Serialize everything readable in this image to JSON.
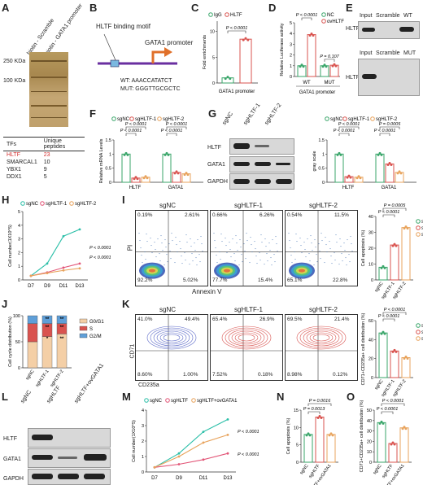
{
  "panel_letters": [
    "A",
    "B",
    "C",
    "D",
    "E",
    "F",
    "G",
    "H",
    "I",
    "J",
    "K",
    "L",
    "M",
    "N",
    "O"
  ],
  "A": {
    "lanes": [
      "biotin - Scramble",
      "biotin - GATA1 promoter"
    ],
    "markers": [
      "250 KDa",
      "100 KDa"
    ],
    "table_headers": [
      "TFs",
      "Unique peptides"
    ],
    "table_rows": [
      [
        "HLTF",
        "23"
      ],
      [
        "SMARCAL1",
        "10"
      ],
      [
        "YBX1",
        "9"
      ],
      [
        "DDX1",
        "5"
      ]
    ],
    "highlight_color": "#d32f2f"
  },
  "B": {
    "title": "HLTF binding motif",
    "promoter": "GATA1 promoter",
    "wt": "WT: AAACCATATCT",
    "mut": "MUT: GGGTTGCGCTC"
  },
  "C": {
    "legend": [
      "IgG",
      "HLTF"
    ],
    "ylabel": "Fold enrichments",
    "xlabel": "GATA1 promoter",
    "p": "P < 0.0001"
  },
  "D": {
    "legend": [
      "NC",
      "ovHLTF"
    ],
    "ylabel": "Relative Luciferase activity",
    "xlabel": "GATA1 promoter",
    "groups": [
      "WT",
      "MUT"
    ],
    "p1": "P < 0.0001",
    "p2": "P = 0.107"
  },
  "E": {
    "top_lanes": [
      "Input",
      "Scramble",
      "WT"
    ],
    "bottom_lanes": [
      "Input",
      "Scramble",
      "MUT"
    ],
    "row_label": "HLTF"
  },
  "F": {
    "legend": [
      "sgNC",
      "sgHLTF-1",
      "sgHLTF-2"
    ],
    "ylabel": "Relative mRNA Levels",
    "groups": [
      "HLTF",
      "GATA1"
    ],
    "p": [
      "P < 0.0001",
      "P < 0.0001",
      "P < 0.0001",
      "P < 0.0001"
    ]
  },
  "G": {
    "lanes": [
      "sgNC",
      "sgHLTF-1",
      "sgHLTF-2"
    ],
    "rows": [
      "HLTF",
      "GATA1",
      "GAPDH"
    ],
    "legend": [
      "sgNC",
      "sgHLTF-1",
      "sgHLTF-2"
    ],
    "ylabel": "gray scale",
    "groups": [
      "HLTF",
      "GATA1"
    ],
    "p": [
      "P < 0.0001",
      "P < 0.0001",
      "P = 0.0005",
      "P < 0.0001"
    ]
  },
  "H": {
    "legend": [
      "sgNC",
      "sgHLTF-1",
      "sgHLTF-2"
    ],
    "ylabel": "Cell number(1X10^5)",
    "p": [
      "P < 0.0001",
      "P < 0.0001"
    ]
  },
  "I": {
    "titles": [
      "sgNC",
      "sgHLTF-1",
      "sgHLTF-2"
    ],
    "quads": [
      [
        "0.19%",
        "2.61%",
        "92.2%",
        "5.02%"
      ],
      [
        "0.66%",
        "6.26%",
        "77.7%",
        "15.4%"
      ],
      [
        "0.54%",
        "11.5%",
        "65.1%",
        "22.8%"
      ]
    ],
    "xlabel": "Annexin V",
    "ylabel": "PI",
    "bar_ylabel": "Cell apoptosis (%)",
    "legend": [
      "sgNC",
      "sgHLTF-1",
      "sgHLTF-2"
    ],
    "p": [
      "P = 0.0005",
      "P < 0.0001"
    ]
  },
  "J": {
    "ylabel": "Cell cycle distribution (%)",
    "legend": [
      "G0/G1",
      "S",
      "G2/M"
    ],
    "stars": [
      "**",
      "*",
      "**",
      "**",
      "**",
      "**"
    ]
  },
  "K": {
    "titles": [
      "sgNC",
      "sgHLTF-1",
      "sgHLTF-2"
    ],
    "quads": [
      [
        "41.0%",
        "49.4%",
        "8.60%",
        "1.00%"
      ],
      [
        "65.4%",
        "26.9%",
        "7.52%",
        "0.18%"
      ],
      [
        "69.5%",
        "21.4%",
        "8.98%",
        "0.12%"
      ]
    ],
    "xlabel": "CD235a",
    "ylabel": "CD71",
    "bar_ylabel": "CD71+CD235a+ cell distribution (%)",
    "legend": [
      "sgNC",
      "sgHLTF-1",
      "sgHLTF-2"
    ],
    "p": [
      "P < 0.0001",
      "P < 0.0001"
    ]
  },
  "L": {
    "lanes": [
      "sgNC",
      "sgHLTF",
      "sgHLTF+ovGATA1"
    ],
    "rows": [
      "HLTF",
      "GATA1",
      "GAPDH"
    ]
  },
  "M": {
    "legend": [
      "sgNC",
      "sgHLTF",
      "sgHLTF+ovGATA1"
    ],
    "ylabel": "Cell number(1X10^5)",
    "p": [
      "P < 0.0001",
      "P < 0.0001"
    ]
  },
  "N": {
    "ylabel": "Cell apoptosis (%)",
    "p": [
      "P = 0.0016",
      "P = 0.0013"
    ]
  },
  "O": {
    "ylabel": "CD71+CD235a+ cell distribution (%)",
    "p": [
      "P < 0.0001",
      "P < 0.0001"
    ]
  },
  "days": [
    "D7",
    "D9",
    "D11",
    "D13"
  ],
  "groups3": [
    "sgNC",
    "sgHLTF-1",
    "sgHLTF-2"
  ],
  "groupsLO": [
    "sgNC",
    "sgHLTF",
    "sgHLTF+ovGATA1"
  ],
  "colors": {
    "green": "#3aa66a",
    "red": "#d9534f",
    "orange": "#e8a35c",
    "teal": "#2bbfa8",
    "pink": "#e25577",
    "blue": "#5f7fbf"
  },
  "chart_data": [
    {
      "type": "bar",
      "panel": "C",
      "categories": [
        "IgG",
        "HLTF"
      ],
      "values": [
        1,
        8.5
      ],
      "ylim": [
        0,
        12
      ],
      "yticks": [
        0,
        5,
        10
      ]
    },
    {
      "type": "bar",
      "panel": "D",
      "categories": [
        "WT",
        "MUT"
      ],
      "series": [
        {
          "name": "NC",
          "values": [
            1,
            1
          ]
        },
        {
          "name": "ovHLTF",
          "values": [
            3.9,
            1.05
          ]
        }
      ],
      "ylim": [
        0,
        5
      ],
      "yticks": [
        0,
        1,
        2,
        3,
        4,
        5
      ]
    },
    {
      "type": "bar",
      "panel": "F",
      "categories": [
        "HLTF",
        "GATA1"
      ],
      "series": [
        {
          "name": "sgNC",
          "values": [
            1,
            1
          ]
        },
        {
          "name": "sgHLTF-1",
          "values": [
            0.15,
            0.35
          ]
        },
        {
          "name": "sgHLTF-2",
          "values": [
            0.18,
            0.3
          ]
        }
      ],
      "ylim": [
        0,
        1.5
      ],
      "yticks": [
        0,
        0.5,
        1.0,
        1.5
      ]
    },
    {
      "type": "bar",
      "panel": "G",
      "categories": [
        "HLTF",
        "GATA1"
      ],
      "series": [
        {
          "name": "sgNC",
          "values": [
            1,
            1
          ]
        },
        {
          "name": "sgHLTF-1",
          "values": [
            0.2,
            0.65
          ]
        },
        {
          "name": "sgHLTF-2",
          "values": [
            0.18,
            0.35
          ]
        }
      ],
      "ylim": [
        0,
        1.5
      ],
      "yticks": [
        0,
        0.5,
        1.0,
        1.5
      ]
    },
    {
      "type": "line",
      "panel": "H",
      "x": [
        "D7",
        "D9",
        "D11",
        "D13"
      ],
      "series": [
        {
          "name": "sgNC",
          "values": [
            0.3,
            1.2,
            3.2,
            3.7
          ]
        },
        {
          "name": "sgHLTF-1",
          "values": [
            0.3,
            0.55,
            0.9,
            1.2
          ]
        },
        {
          "name": "sgHLTF-2",
          "values": [
            0.3,
            0.5,
            0.7,
            0.85
          ]
        }
      ],
      "ylim": [
        0,
        5
      ],
      "yticks": [
        0,
        1,
        2,
        3,
        4,
        5
      ]
    },
    {
      "type": "bar",
      "panel": "I",
      "categories": [
        "sgNC",
        "sgHLTF-1",
        "sgHLTF-2"
      ],
      "values": [
        8,
        22,
        33
      ],
      "ylim": [
        0,
        40
      ],
      "yticks": [
        0,
        10,
        20,
        30,
        40
      ]
    },
    {
      "type": "bar",
      "panel": "J",
      "categories": [
        "sgNC",
        "sgHLTF-1",
        "sgHLTF-2"
      ],
      "series": [
        {
          "name": "G0/G1",
          "values": [
            50,
            60,
            65
          ]
        },
        {
          "name": "S",
          "values": [
            35,
            25,
            20
          ]
        },
        {
          "name": "G2/M",
          "values": [
            15,
            15,
            15
          ]
        }
      ],
      "ylim": [
        0,
        100
      ],
      "yticks": [
        0,
        50,
        100
      ]
    },
    {
      "type": "bar",
      "panel": "K",
      "categories": [
        "sgNC",
        "sgHLTF-1",
        "sgHLTF-2"
      ],
      "values": [
        47,
        28,
        21
      ],
      "ylim": [
        0,
        60
      ],
      "yticks": [
        0,
        20,
        40,
        60
      ]
    },
    {
      "type": "line",
      "panel": "M",
      "x": [
        "D7",
        "D9",
        "D11",
        "D13"
      ],
      "series": [
        {
          "name": "sgNC",
          "values": [
            0.3,
            1.2,
            2.6,
            3.4
          ]
        },
        {
          "name": "sgHLTF",
          "values": [
            0.3,
            0.5,
            0.8,
            1.2
          ]
        },
        {
          "name": "sgHLTF+ovGATA1",
          "values": [
            0.3,
            1.0,
            1.9,
            2.4
          ]
        }
      ],
      "ylim": [
        0,
        4
      ],
      "yticks": [
        0,
        1,
        2,
        3,
        4
      ]
    },
    {
      "type": "bar",
      "panel": "N",
      "categories": [
        "sgNC",
        "sgHLTF",
        "sgHLTF+ovGATA1"
      ],
      "values": [
        8,
        13,
        8
      ],
      "ylim": [
        0,
        15
      ],
      "yticks": [
        0,
        5,
        10,
        15
      ]
    },
    {
      "type": "bar",
      "panel": "O",
      "categories": [
        "sgNC",
        "sgHLTF",
        "sgHLTF+ovGATA1"
      ],
      "values": [
        38,
        18,
        33
      ],
      "ylim": [
        0,
        50
      ],
      "yticks": [
        0,
        10,
        20,
        30,
        40,
        50
      ]
    }
  ]
}
